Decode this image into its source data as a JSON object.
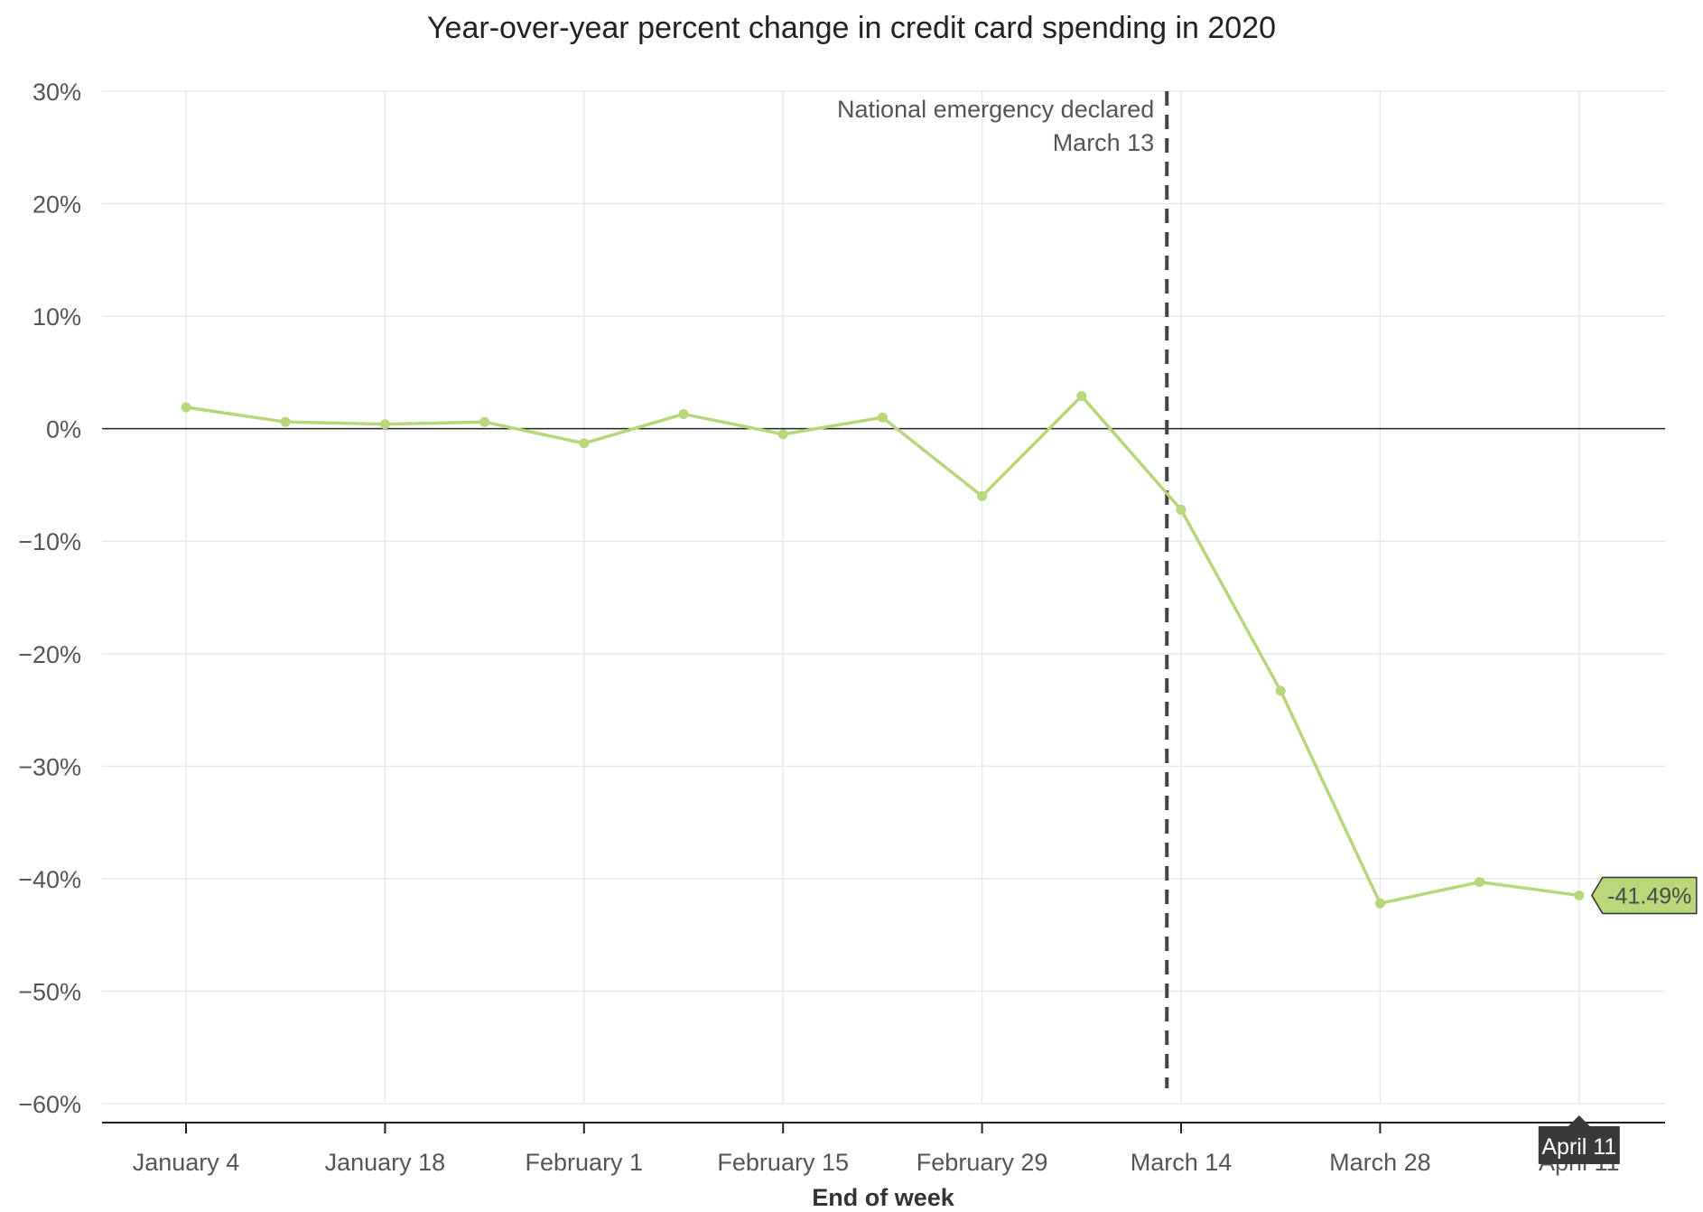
{
  "chart_data": {
    "type": "line",
    "title": "Year-over-year percent change in credit card spending in 2020",
    "xlabel": "End of week",
    "ylabel": "",
    "ylim": [
      -60,
      30
    ],
    "y_ticks": [
      30,
      20,
      10,
      0,
      -10,
      -20,
      -30,
      -40,
      -50,
      -60
    ],
    "y_tick_labels": [
      "30%",
      "20%",
      "10%",
      "0%",
      "−10%",
      "−20%",
      "−30%",
      "−40%",
      "−50%",
      "−60%"
    ],
    "x": [
      "January 4",
      "January 11",
      "January 18",
      "January 25",
      "February 1",
      "February 8",
      "February 15",
      "February 22",
      "February 29",
      "March 7",
      "March 14",
      "March 21",
      "March 28",
      "April 4",
      "April 11"
    ],
    "x_tick_labels": [
      "January 4",
      "January 18",
      "February 1",
      "February 15",
      "February 29",
      "March 14",
      "March 28",
      "April 11"
    ],
    "series": [
      {
        "values": [
          1.9,
          0.6,
          0.4,
          0.6,
          -1.3,
          1.3,
          -0.5,
          1.0,
          -6.0,
          2.9,
          -7.2,
          -23.3,
          -42.2,
          -40.3,
          -41.49
        ],
        "color": "#b8d67a"
      }
    ],
    "grid": true,
    "zero_line": true,
    "annotations": [
      {
        "type": "vertical-dashed-line",
        "x": "March 13",
        "text_lines": [
          "National emergency declared",
          "March 13"
        ],
        "color": "#444444"
      }
    ],
    "tooltip": {
      "x_label": "April 11",
      "value_label": "-41.49%"
    }
  }
}
